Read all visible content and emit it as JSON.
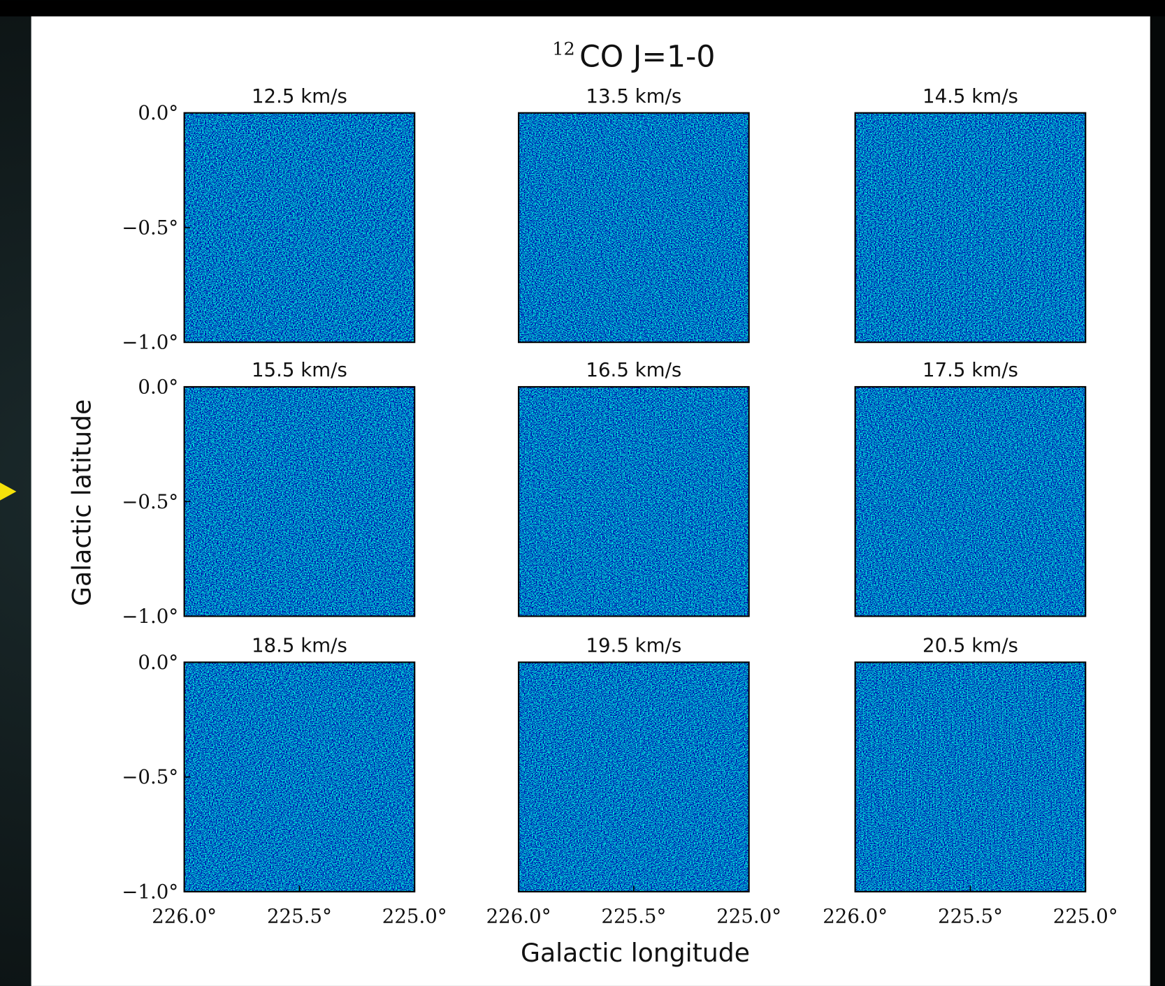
{
  "figure": {
    "title_sup": "12",
    "title": "CO J=1-0",
    "xlabel": "Galactic longitude",
    "ylabel": "Galactic latitude"
  },
  "chart_data": [
    {
      "type": "image",
      "title": "12.5 km/s",
      "xlim": [
        226.0,
        225.0
      ],
      "ylim": [
        -1.0,
        0.0
      ],
      "yticks": [
        {
          "value": 0.0,
          "label": "0.0°"
        },
        {
          "value": -0.5,
          "label": "−0.5°"
        },
        {
          "value": -1.0,
          "label": "−1.0°"
        }
      ]
    },
    {
      "type": "image",
      "title": "13.5 km/s",
      "xlim": [
        226.0,
        225.0
      ],
      "ylim": [
        -1.0,
        0.0
      ]
    },
    {
      "type": "image",
      "title": "14.5 km/s",
      "xlim": [
        226.0,
        225.0
      ],
      "ylim": [
        -1.0,
        0.0
      ]
    },
    {
      "type": "image",
      "title": "15.5 km/s",
      "xlim": [
        226.0,
        225.0
      ],
      "ylim": [
        -1.0,
        0.0
      ],
      "yticks": [
        {
          "value": 0.0,
          "label": "0.0°"
        },
        {
          "value": -0.5,
          "label": "−0.5°"
        },
        {
          "value": -1.0,
          "label": "−1.0°"
        }
      ]
    },
    {
      "type": "image",
      "title": "16.5 km/s",
      "xlim": [
        226.0,
        225.0
      ],
      "ylim": [
        -1.0,
        0.0
      ]
    },
    {
      "type": "image",
      "title": "17.5 km/s",
      "xlim": [
        226.0,
        225.0
      ],
      "ylim": [
        -1.0,
        0.0
      ]
    },
    {
      "type": "image",
      "title": "18.5 km/s",
      "xlim": [
        226.0,
        225.0
      ],
      "ylim": [
        -1.0,
        0.0
      ],
      "yticks": [
        {
          "value": 0.0,
          "label": "0.0°"
        },
        {
          "value": -0.5,
          "label": "−0.5°"
        },
        {
          "value": -1.0,
          "label": "−1.0°"
        }
      ],
      "xticks": [
        {
          "value": 226.0,
          "label": "226.0°"
        },
        {
          "value": 225.5,
          "label": "225.5°"
        },
        {
          "value": 225.0,
          "label": "225.0°"
        }
      ]
    },
    {
      "type": "image",
      "title": "19.5 km/s",
      "xlim": [
        226.0,
        225.0
      ],
      "ylim": [
        -1.0,
        0.0
      ],
      "xticks": [
        {
          "value": 226.0,
          "label": "226.0°"
        },
        {
          "value": 225.5,
          "label": "225.5°"
        },
        {
          "value": 225.0,
          "label": "225.0°"
        }
      ]
    },
    {
      "type": "image",
      "title": "20.5 km/s",
      "xlim": [
        226.0,
        225.0
      ],
      "ylim": [
        -1.0,
        0.0
      ],
      "xticks": [
        {
          "value": 226.0,
          "label": "226.0°"
        },
        {
          "value": 225.5,
          "label": "225.5°"
        },
        {
          "value": 225.0,
          "label": "225.0°"
        }
      ]
    }
  ]
}
